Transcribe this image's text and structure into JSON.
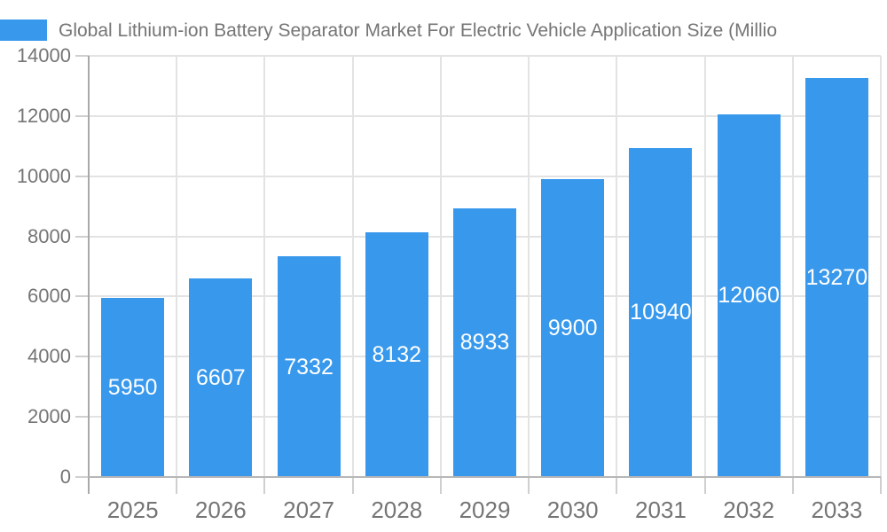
{
  "legend": {
    "series_label": "Global Lithium-ion Battery Separator Market For Electric Vehicle Application Size (Millio",
    "swatch_color": "#3898EC"
  },
  "chart_data": {
    "type": "bar",
    "title": "Global Lithium-ion Battery Separator Market For Electric Vehicle Application Size (Millio",
    "categories": [
      "2025",
      "2026",
      "2027",
      "2028",
      "2029",
      "2030",
      "2031",
      "2032",
      "2033"
    ],
    "values": [
      5950,
      6607,
      7332,
      8132,
      8933,
      9900,
      10940,
      12060,
      13270
    ],
    "xlabel": "",
    "ylabel": "",
    "ylim": [
      0,
      14000
    ],
    "ytick_step": 2000,
    "grid": true,
    "legend_position": "top-left",
    "bar_color": "#3898EC",
    "value_label_color": "#FFFFFF",
    "axis_text_color": "#757575",
    "gridline_color": "#E3E3E3",
    "axis_line_color": "#A9A9A9"
  },
  "layout_note": "single-series vertical bar chart, value labels centered inside bars"
}
